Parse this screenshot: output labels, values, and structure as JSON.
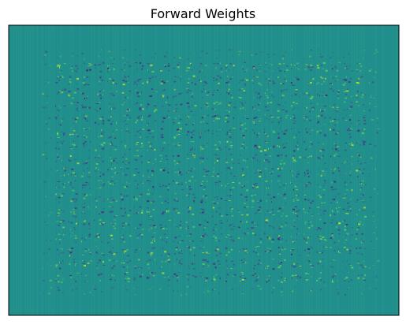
{
  "chart_data": {
    "type": "heatmap",
    "title": "Forward Weights",
    "xlabel": "",
    "ylabel": "",
    "show_ticks": false,
    "grid": false,
    "colormap": "viridis",
    "background_color": "#21908d",
    "colors": {
      "negative": "#3b528b",
      "positive": "#5ec962",
      "strong_positive": "#addc30",
      "strong_negative": "#472c7a",
      "frame": "#000000"
    },
    "value_range": [
      -1,
      1
    ],
    "tile_grid": {
      "columns": 26,
      "rows": 19
    }
  }
}
